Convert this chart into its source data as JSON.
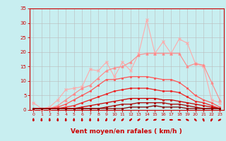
{
  "x": [
    0,
    1,
    2,
    3,
    4,
    5,
    6,
    7,
    8,
    9,
    10,
    11,
    12,
    13,
    14,
    15,
    16,
    17,
    18,
    19,
    20,
    21,
    22,
    23
  ],
  "series": [
    {
      "color": "#ffaaaa",
      "lw": 0.8,
      "marker": "x",
      "ms": 3,
      "mew": 0.8,
      "y": [
        2.5,
        0.5,
        1.0,
        3.5,
        7.0,
        7.5,
        8.0,
        14.0,
        13.5,
        16.5,
        11.5,
        16.5,
        13.5,
        19.5,
        31.0,
        19.5,
        23.5,
        19.5,
        24.5,
        23.0,
        16.0,
        15.0,
        3.5,
        2.5
      ]
    },
    {
      "color": "#ff8888",
      "lw": 0.8,
      "marker": "^",
      "ms": 2.5,
      "mew": 0.5,
      "y": [
        0.5,
        0.5,
        0.5,
        1.5,
        3.5,
        5.5,
        7.5,
        8.5,
        11.0,
        13.5,
        14.5,
        15.0,
        16.5,
        19.0,
        19.5,
        19.5,
        19.5,
        19.5,
        19.5,
        15.0,
        16.0,
        15.5,
        9.5,
        3.5
      ]
    },
    {
      "color": "#ff5555",
      "lw": 0.9,
      "marker": "s",
      "ms": 2,
      "mew": 0.5,
      "y": [
        0.5,
        0.5,
        0.5,
        1.0,
        2.0,
        3.5,
        5.0,
        6.5,
        8.5,
        10.5,
        10.5,
        11.0,
        11.5,
        11.5,
        11.5,
        11.0,
        10.5,
        10.5,
        9.5,
        7.5,
        5.0,
        3.5,
        2.5,
        1.0
      ]
    },
    {
      "color": "#ee2222",
      "lw": 0.9,
      "marker": "s",
      "ms": 2,
      "mew": 0.5,
      "y": [
        0.5,
        0.5,
        0.5,
        0.5,
        1.0,
        1.5,
        2.5,
        3.5,
        4.5,
        5.5,
        6.5,
        7.0,
        7.5,
        7.5,
        7.5,
        7.0,
        6.5,
        6.5,
        6.0,
        4.5,
        3.0,
        2.5,
        1.5,
        0.5
      ]
    },
    {
      "color": "#cc0000",
      "lw": 0.9,
      "marker": "s",
      "ms": 2,
      "mew": 0.5,
      "y": [
        0.5,
        0.5,
        0.5,
        0.5,
        0.5,
        0.5,
        1.0,
        1.5,
        2.0,
        2.5,
        3.0,
        3.5,
        4.0,
        4.0,
        4.0,
        4.0,
        3.5,
        3.5,
        3.0,
        2.5,
        2.0,
        1.5,
        1.0,
        0.5
      ]
    },
    {
      "color": "#aa0000",
      "lw": 0.9,
      "marker": "s",
      "ms": 2,
      "mew": 0.5,
      "y": [
        0.5,
        0.5,
        0.5,
        0.5,
        0.5,
        0.5,
        0.5,
        0.5,
        0.5,
        1.0,
        1.5,
        2.0,
        2.0,
        2.5,
        2.5,
        2.5,
        2.5,
        2.0,
        2.0,
        1.5,
        1.0,
        0.5,
        0.5,
        0.5
      ]
    },
    {
      "color": "#880000",
      "lw": 0.9,
      "marker": "s",
      "ms": 2,
      "mew": 0.5,
      "y": [
        0.5,
        0.5,
        0.5,
        0.5,
        0.5,
        0.5,
        0.5,
        0.5,
        0.5,
        0.5,
        0.5,
        0.5,
        1.0,
        1.0,
        1.0,
        1.5,
        1.0,
        1.0,
        1.0,
        0.5,
        0.5,
        0.5,
        0.5,
        0.5
      ]
    }
  ],
  "wind_angles": [
    180,
    180,
    180,
    180,
    180,
    180,
    180,
    180,
    180,
    200,
    210,
    220,
    225,
    230,
    240,
    250,
    260,
    270,
    280,
    300,
    320,
    340,
    30,
    60
  ],
  "ylim": [
    0,
    35
  ],
  "yticks": [
    0,
    5,
    10,
    15,
    20,
    25,
    30,
    35
  ],
  "xlim": [
    -0.5,
    23.5
  ],
  "xlabel": "Vent moyen/en rafales ( km/h )",
  "bg_color": "#c8eef0",
  "grid_color": "#bbbbbb",
  "axis_color": "#cc0000",
  "label_color": "#cc0000",
  "tick_color": "#cc0000",
  "arrow_color": "#cc0000"
}
